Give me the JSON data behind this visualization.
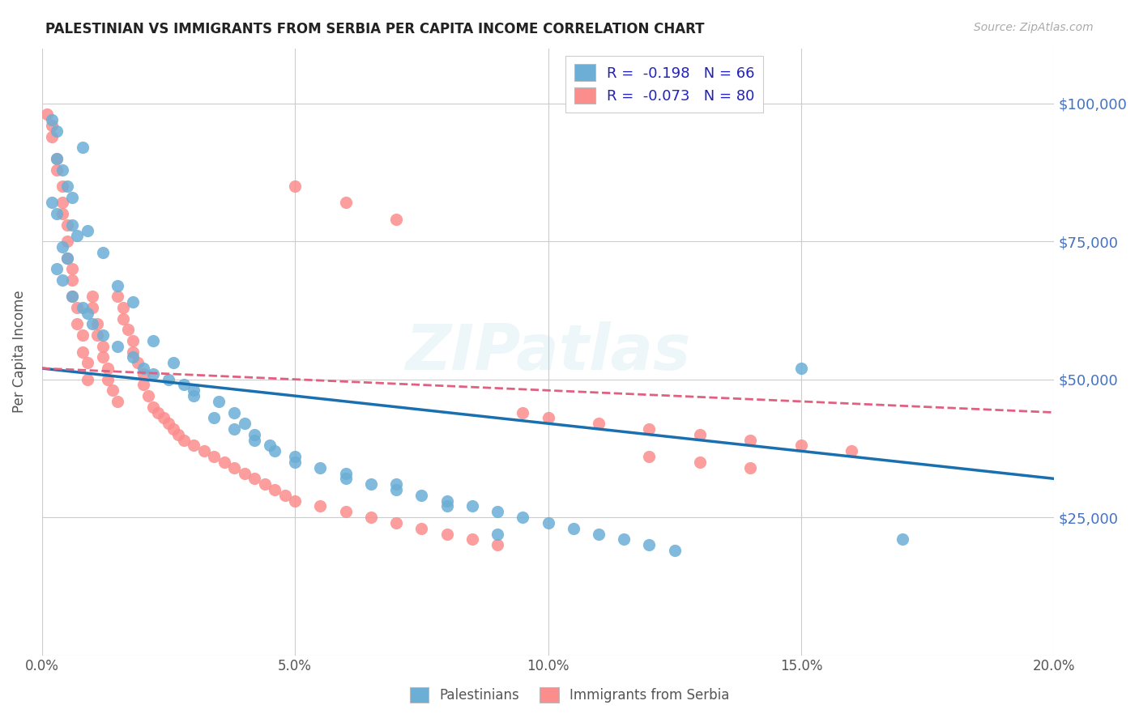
{
  "title": "PALESTINIAN VS IMMIGRANTS FROM SERBIA PER CAPITA INCOME CORRELATION CHART",
  "source": "Source: ZipAtlas.com",
  "ylabel": "Per Capita Income",
  "x_min": 0.0,
  "x_max": 0.2,
  "y_min": 0,
  "y_max": 110000,
  "y_ticks": [
    0,
    25000,
    50000,
    75000,
    100000
  ],
  "y_tick_labels": [
    "",
    "$25,000",
    "$50,000",
    "$75,000",
    "$100,000"
  ],
  "x_tick_labels": [
    "0.0%",
    "5.0%",
    "10.0%",
    "15.0%",
    "20.0%"
  ],
  "x_ticks": [
    0.0,
    0.05,
    0.1,
    0.15,
    0.2
  ],
  "legend_labels": [
    "Palestinians",
    "Immigrants from Serbia"
  ],
  "blue_color": "#6baed6",
  "pink_color": "#fc8d8d",
  "blue_line_color": "#1a6faf",
  "pink_line_color": "#e06080",
  "R_blue": -0.198,
  "N_blue": 66,
  "R_pink": -0.073,
  "N_pink": 80,
  "watermark": "ZIPatlas",
  "blue_scatter_x": [
    0.002,
    0.003,
    0.008,
    0.004,
    0.005,
    0.002,
    0.003,
    0.006,
    0.007,
    0.004,
    0.005,
    0.003,
    0.004,
    0.006,
    0.008,
    0.009,
    0.01,
    0.012,
    0.015,
    0.018,
    0.02,
    0.022,
    0.025,
    0.028,
    0.03,
    0.035,
    0.038,
    0.04,
    0.042,
    0.045,
    0.05,
    0.055,
    0.06,
    0.065,
    0.07,
    0.075,
    0.08,
    0.085,
    0.09,
    0.095,
    0.1,
    0.105,
    0.11,
    0.115,
    0.12,
    0.125,
    0.003,
    0.006,
    0.009,
    0.012,
    0.015,
    0.018,
    0.022,
    0.026,
    0.03,
    0.034,
    0.038,
    0.042,
    0.046,
    0.05,
    0.06,
    0.07,
    0.08,
    0.09,
    0.15,
    0.17
  ],
  "blue_scatter_y": [
    97000,
    95000,
    92000,
    88000,
    85000,
    82000,
    80000,
    78000,
    76000,
    74000,
    72000,
    70000,
    68000,
    65000,
    63000,
    62000,
    60000,
    58000,
    56000,
    54000,
    52000,
    51000,
    50000,
    49000,
    48000,
    46000,
    44000,
    42000,
    40000,
    38000,
    36000,
    34000,
    32000,
    31000,
    30000,
    29000,
    28000,
    27000,
    26000,
    25000,
    24000,
    23000,
    22000,
    21000,
    20000,
    19000,
    90000,
    83000,
    77000,
    73000,
    67000,
    64000,
    57000,
    53000,
    47000,
    43000,
    41000,
    39000,
    37000,
    35000,
    33000,
    31000,
    27000,
    22000,
    52000,
    21000
  ],
  "pink_scatter_x": [
    0.001,
    0.002,
    0.002,
    0.003,
    0.003,
    0.004,
    0.004,
    0.004,
    0.005,
    0.005,
    0.005,
    0.006,
    0.006,
    0.006,
    0.007,
    0.007,
    0.008,
    0.008,
    0.009,
    0.009,
    0.01,
    0.01,
    0.011,
    0.011,
    0.012,
    0.012,
    0.013,
    0.013,
    0.014,
    0.015,
    0.015,
    0.016,
    0.016,
    0.017,
    0.018,
    0.018,
    0.019,
    0.02,
    0.02,
    0.021,
    0.022,
    0.023,
    0.024,
    0.025,
    0.026,
    0.027,
    0.028,
    0.03,
    0.032,
    0.034,
    0.036,
    0.038,
    0.04,
    0.042,
    0.044,
    0.046,
    0.048,
    0.05,
    0.055,
    0.06,
    0.065,
    0.07,
    0.075,
    0.08,
    0.085,
    0.09,
    0.095,
    0.1,
    0.11,
    0.12,
    0.13,
    0.14,
    0.15,
    0.16,
    0.12,
    0.13,
    0.14,
    0.05,
    0.06,
    0.07
  ],
  "pink_scatter_y": [
    98000,
    96000,
    94000,
    90000,
    88000,
    85000,
    82000,
    80000,
    78000,
    75000,
    72000,
    70000,
    68000,
    65000,
    63000,
    60000,
    58000,
    55000,
    53000,
    50000,
    65000,
    63000,
    60000,
    58000,
    56000,
    54000,
    52000,
    50000,
    48000,
    46000,
    65000,
    63000,
    61000,
    59000,
    57000,
    55000,
    53000,
    51000,
    49000,
    47000,
    45000,
    44000,
    43000,
    42000,
    41000,
    40000,
    39000,
    38000,
    37000,
    36000,
    35000,
    34000,
    33000,
    32000,
    31000,
    30000,
    29000,
    28000,
    27000,
    26000,
    25000,
    24000,
    23000,
    22000,
    21000,
    20000,
    44000,
    43000,
    42000,
    41000,
    40000,
    39000,
    38000,
    37000,
    36000,
    35000,
    34000,
    85000,
    82000,
    79000
  ],
  "blue_trend_x": [
    0.0,
    0.2
  ],
  "blue_trend_y": [
    52000,
    32000
  ],
  "pink_trend_x": [
    0.0,
    0.2
  ],
  "pink_trend_y": [
    52000,
    44000
  ]
}
